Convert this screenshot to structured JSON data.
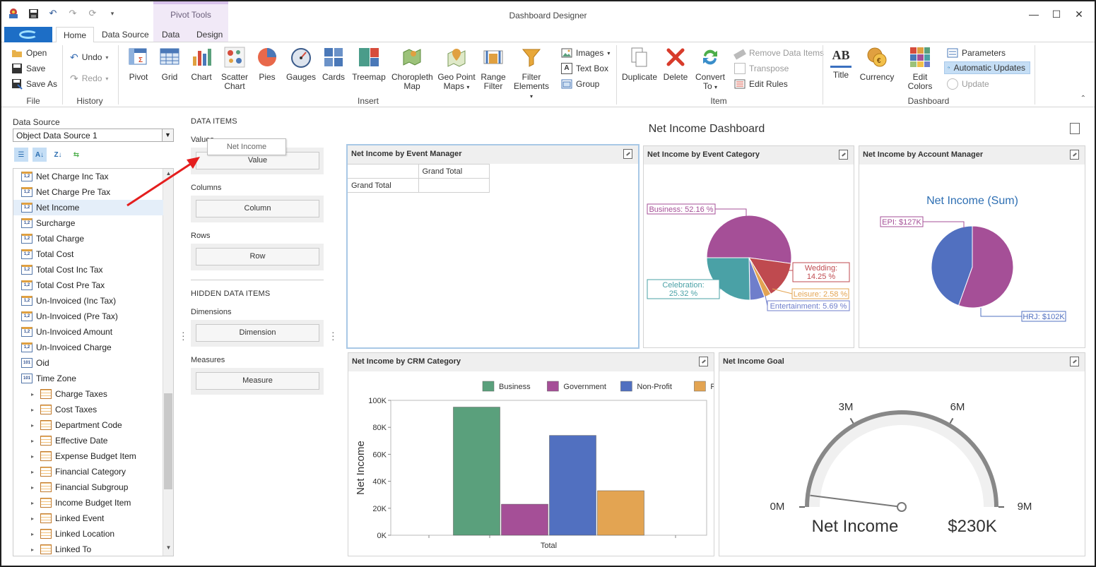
{
  "window": {
    "title": "Dashboard Designer",
    "context_tab_group": "Pivot Tools"
  },
  "tabs": [
    {
      "label": "Home",
      "active": true
    },
    {
      "label": "Data Source",
      "active": false
    },
    {
      "label": "Data",
      "active": false
    },
    {
      "label": "Design",
      "active": false
    }
  ],
  "ribbon": {
    "file": {
      "open": "Open",
      "save": "Save",
      "save_as": "Save As",
      "label": "File"
    },
    "history": {
      "undo": "Undo",
      "redo": "Redo",
      "label": "History"
    },
    "insert": {
      "label": "Insert",
      "pivot": "Pivot",
      "grid": "Grid",
      "chart": "Chart",
      "scatter_1": "Scatter",
      "scatter_2": "Chart",
      "pies": "Pies",
      "gauges": "Gauges",
      "cards": "Cards",
      "treemap": "Treemap",
      "choropleth_1": "Choropleth",
      "choropleth_2": "Map",
      "geo_1": "Geo Point",
      "geo_2": "Maps",
      "range_1": "Range",
      "range_2": "Filter",
      "filter_1": "Filter",
      "filter_2": "Elements",
      "images": "Images",
      "text_box": "Text Box",
      "group": "Group"
    },
    "item": {
      "label": "Item",
      "duplicate": "Duplicate",
      "delete": "Delete",
      "convert_1": "Convert",
      "convert_2": "To",
      "remove_data_items": "Remove Data Items",
      "transpose": "Transpose",
      "edit_rules": "Edit Rules"
    },
    "dashboard": {
      "label": "Dashboard",
      "title": "Title",
      "currency": "Currency",
      "edit_colors": "Edit Colors",
      "parameters": "Parameters",
      "automatic_updates": "Automatic Updates",
      "update": "Update"
    }
  },
  "data_source": {
    "label": "Data Source",
    "selected": "Object Data Source 1",
    "fields": [
      {
        "label": "Net Charge Inc Tax",
        "kind": "num"
      },
      {
        "label": "Net Charge Pre Tax",
        "kind": "num"
      },
      {
        "label": "Net Income",
        "kind": "num",
        "highlight": true
      },
      {
        "label": "Surcharge",
        "kind": "num"
      },
      {
        "label": "Total Charge",
        "kind": "num"
      },
      {
        "label": "Total Cost",
        "kind": "num"
      },
      {
        "label": "Total Cost Inc Tax",
        "kind": "num"
      },
      {
        "label": "Total Cost Pre Tax",
        "kind": "num"
      },
      {
        "label": "Un-Invoiced (Inc Tax)",
        "kind": "num"
      },
      {
        "label": "Un-Invoiced (Pre Tax)",
        "kind": "num"
      },
      {
        "label": "Un-Invoiced Amount",
        "kind": "num"
      },
      {
        "label": "Un-Invoiced Charge",
        "kind": "num"
      },
      {
        "label": "Oid",
        "kind": "id"
      },
      {
        "label": "Time Zone",
        "kind": "id"
      },
      {
        "label": "Charge Taxes",
        "kind": "table"
      },
      {
        "label": "Cost Taxes",
        "kind": "table"
      },
      {
        "label": "Department Code",
        "kind": "table"
      },
      {
        "label": "Effective Date",
        "kind": "table"
      },
      {
        "label": "Expense Budget Item",
        "kind": "table"
      },
      {
        "label": "Financial Category",
        "kind": "table"
      },
      {
        "label": "Financial Subgroup",
        "kind": "table"
      },
      {
        "label": "Income Budget Item",
        "kind": "table"
      },
      {
        "label": "Linked Event",
        "kind": "table"
      },
      {
        "label": "Linked Location",
        "kind": "table"
      },
      {
        "label": "Linked To",
        "kind": "table"
      }
    ],
    "num_icon": "1,2",
    "id_icon": "101"
  },
  "data_items": {
    "title": "DATA ITEMS",
    "values_label": "Values",
    "value_btn": "Value",
    "columns_label": "Columns",
    "column_btn": "Column",
    "rows_label": "Rows",
    "row_btn": "Row",
    "hidden_title": "HIDDEN DATA ITEMS",
    "dimensions_label": "Dimensions",
    "dimension_btn": "Dimension",
    "measures_label": "Measures",
    "measure_btn": "Measure",
    "drag_ghost": "Net Income"
  },
  "dashboard": {
    "title": "Net Income Dashboard",
    "event_manager": {
      "title": "Net Income by Event Manager",
      "col_header": "Grand Total",
      "row_header": "Grand Total"
    },
    "event_category": {
      "title": "Net Income by Event Category",
      "slices": [
        {
          "label": "Business: 52.16 %",
          "value": 52.16,
          "color": "#a54f97"
        },
        {
          "label_1": "Wedding:",
          "label_2": "14.25 %",
          "value": 14.25,
          "color": "#bf4a4f"
        },
        {
          "label": "Leisure: 2.58 %",
          "value": 2.58,
          "color": "#e3a452"
        },
        {
          "label": "Entertainment: 5.69 %",
          "value": 5.69,
          "color": "#6f7ecb"
        },
        {
          "label_1": "Celebration:",
          "label_2": "25.32 %",
          "value": 25.32,
          "color": "#4aa1a6"
        }
      ]
    },
    "account_manager": {
      "title": "Net Income by Account Manager",
      "subtitle": "Net Income (Sum)",
      "slices": [
        {
          "label": "EPI: $127K",
          "value": 127,
          "color": "#a54f97"
        },
        {
          "label": "HRJ: $102K",
          "value": 102,
          "color": "#5170c0"
        }
      ]
    },
    "crm_category": {
      "title": "Net Income by CRM Category"
    },
    "goal": {
      "title": "Net Income Goal",
      "gauge_label": "Net Income",
      "gauge_value_text": "$230K",
      "value": 230000,
      "min": 0,
      "max": 9000000,
      "ticks": [
        "0M",
        "3M",
        "6M",
        "9M"
      ]
    }
  },
  "chart_data": {
    "type": "bar",
    "title": "",
    "categories": [
      "Total"
    ],
    "series": [
      {
        "name": "Business",
        "values": [
          95000
        ],
        "color": "#5aa07c"
      },
      {
        "name": "Government",
        "values": [
          23000
        ],
        "color": "#a54f97"
      },
      {
        "name": "Non-Profit",
        "values": [
          74000
        ],
        "color": "#5170c0"
      },
      {
        "name": "Personal",
        "values": [
          33000
        ],
        "color": "#e3a452"
      }
    ],
    "ylabel": "Net Income",
    "xlabel": "",
    "ylim": [
      0,
      100000
    ],
    "yticks": [
      "0K",
      "20K",
      "40K",
      "60K",
      "80K",
      "100K"
    ],
    "legend": "top-right",
    "grid": false
  }
}
